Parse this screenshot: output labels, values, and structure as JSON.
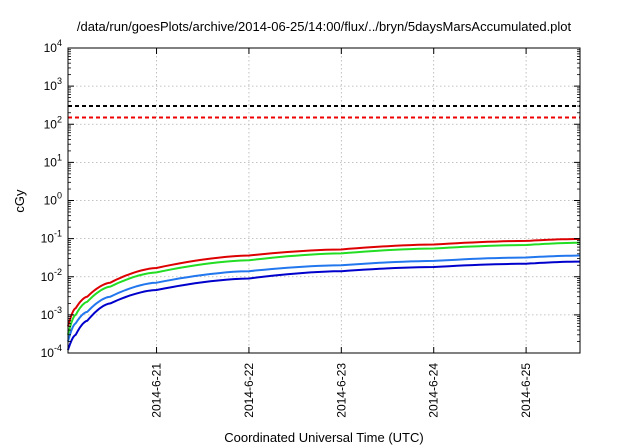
{
  "chart_data": {
    "type": "line",
    "title": "/data/run/goesPlots/archive/2014-06-25/14:00/flux/../bryn/5daysMarsAccumulated.plot",
    "xlabel": "Coordinated Universal Time (UTC)",
    "ylabel": "cGy",
    "y_scale": "log",
    "ylim": [
      0.0001,
      10000
    ],
    "xlim": [
      "2014-06-20 01:00",
      "2014-06-25 14:00"
    ],
    "x_tick_labels": [
      "2014-6-21",
      "2014-6-22",
      "2014-6-23",
      "2014-6-24",
      "2014-6-25"
    ],
    "y_ticks": [
      {
        "base": "10",
        "exp": "-4"
      },
      {
        "base": "10",
        "exp": "-3"
      },
      {
        "base": "10",
        "exp": "-2"
      },
      {
        "base": "10",
        "exp": "-1"
      },
      {
        "base": "10",
        "exp": "0"
      },
      {
        "base": "10",
        "exp": "1"
      },
      {
        "base": "10",
        "exp": "2"
      },
      {
        "base": "10",
        "exp": "3"
      },
      {
        "base": "10",
        "exp": "4"
      }
    ],
    "grid": true,
    "reference_lines": [
      {
        "style": "dashed",
        "color": "#000000",
        "y": 300
      },
      {
        "style": "dashed",
        "color": "#ee0000",
        "y": 150
      }
    ],
    "series": [
      {
        "color": "#dd0000",
        "x": [
          "2014-06-20 01:00",
          "2014-06-20 03:00",
          "2014-06-20 06:00",
          "2014-06-20 12:00",
          "2014-06-21 00:00",
          "2014-06-22 00:00",
          "2014-06-23 00:00",
          "2014-06-24 00:00",
          "2014-06-25 00:00",
          "2014-06-25 14:00"
        ],
        "y": [
          0.0005,
          0.0015,
          0.003,
          0.007,
          0.017,
          0.036,
          0.052,
          0.07,
          0.087,
          0.098
        ]
      },
      {
        "color": "#22dd22",
        "x": [
          "2014-06-20 01:00",
          "2014-06-20 03:00",
          "2014-06-20 06:00",
          "2014-06-20 12:00",
          "2014-06-21 00:00",
          "2014-06-22 00:00",
          "2014-06-23 00:00",
          "2014-06-24 00:00",
          "2014-06-25 00:00",
          "2014-06-25 14:00"
        ],
        "y": [
          0.0003,
          0.001,
          0.0022,
          0.0055,
          0.013,
          0.027,
          0.041,
          0.055,
          0.068,
          0.078
        ]
      },
      {
        "color": "#2277ee",
        "x": [
          "2014-06-20 01:00",
          "2014-06-20 03:00",
          "2014-06-20 06:00",
          "2014-06-20 12:00",
          "2014-06-21 00:00",
          "2014-06-22 00:00",
          "2014-06-23 00:00",
          "2014-06-24 00:00",
          "2014-06-25 00:00",
          "2014-06-25 14:00"
        ],
        "y": [
          0.0002,
          0.0006,
          0.0012,
          0.003,
          0.007,
          0.014,
          0.02,
          0.026,
          0.032,
          0.036
        ]
      },
      {
        "color": "#0000cc",
        "x": [
          "2014-06-20 01:00",
          "2014-06-20 03:00",
          "2014-06-20 06:00",
          "2014-06-20 12:00",
          "2014-06-21 00:00",
          "2014-06-22 00:00",
          "2014-06-23 00:00",
          "2014-06-24 00:00",
          "2014-06-25 00:00",
          "2014-06-25 14:00"
        ],
        "y": [
          0.00012,
          0.0003,
          0.0007,
          0.002,
          0.0045,
          0.009,
          0.014,
          0.018,
          0.022,
          0.025
        ]
      }
    ]
  }
}
